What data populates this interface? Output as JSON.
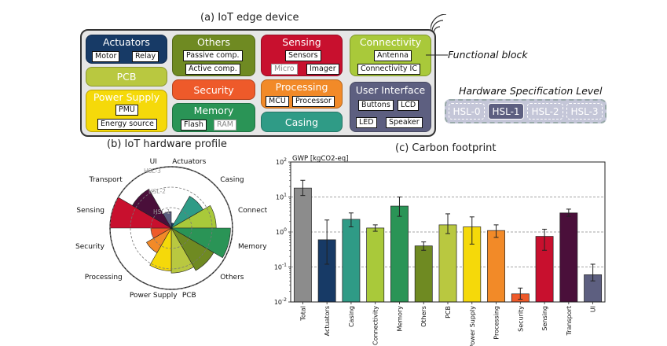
{
  "captions": {
    "a": "(a) IoT edge device",
    "b": "(b) IoT hardware profile",
    "c": "(c) Carbon footprint",
    "functional_block": "Functional block",
    "hsl_title": "Hardware Specification Level"
  },
  "blocks": {
    "actuators": {
      "title": "Actuators",
      "tags": [
        "Motor",
        "Relay"
      ],
      "color": "#173a66"
    },
    "others": {
      "title": "Others",
      "tags": [
        "Passive comp.",
        "Active comp."
      ],
      "color": "#6f8a22"
    },
    "sensing": {
      "title": "Sensing",
      "tags": [
        "Sensors",
        "Micro",
        "Imager"
      ],
      "color": "#c8102e"
    },
    "connectivity": {
      "title": "Connectivity",
      "tags": [
        "Antenna",
        "Connectivity IC"
      ],
      "color": "#a9c93a"
    },
    "pcb": {
      "title": "PCB",
      "color": "#b9c840"
    },
    "security": {
      "title": "Security",
      "color": "#ee5a2a"
    },
    "processing": {
      "title": "Processing",
      "tags": [
        "MCU",
        "Processor"
      ],
      "color": "#f28a28"
    },
    "power": {
      "title": "Power Supply",
      "tags": [
        "PMU",
        "Energy source"
      ],
      "color": "#f5d90a"
    },
    "memory": {
      "title": "Memory",
      "tags": [
        "Flash",
        "RAM"
      ],
      "color": "#2a9456"
    },
    "casing": {
      "title": "Casing",
      "color": "#2f9b86"
    },
    "ui": {
      "title": "User Interface",
      "tags": [
        "Buttons",
        "LCD",
        "LED",
        "Speaker"
      ],
      "color": "#5d5f80"
    }
  },
  "hsl_levels": [
    "HSL-0",
    "HSL-1",
    "HSL-2",
    "HSL-3"
  ],
  "hsl_active": "HSL-1",
  "radar": {
    "categories": [
      "Actuators",
      "Casing",
      "Connectivity",
      "Memory",
      "Others",
      "PCB",
      "Power Supply",
      "Processing",
      "Security",
      "Sensing",
      "Transport",
      "UI"
    ],
    "rings": [
      "HSL-1",
      "HSL-2",
      "HSL-3"
    ],
    "levels": [
      0.25,
      1.8,
      2.2,
      2.9,
      2.4,
      2.2,
      2.1,
      1.4,
      1.0,
      3.0,
      2.2,
      0.8
    ],
    "max_level": 3,
    "colors": [
      "#173a66",
      "#2f9b86",
      "#a9c93a",
      "#2a9456",
      "#6f8a22",
      "#b9c840",
      "#f5d90a",
      "#f28a28",
      "#ee5a2a",
      "#c8102e",
      "#4a0f3a",
      "#5d5f80"
    ]
  },
  "chart_data": {
    "type": "bar",
    "title": "(c) Carbon footprint",
    "ylabel": "GWP [kgCO2-eq]",
    "yscale": "log",
    "ylim": [
      0.01,
      100
    ],
    "yticks": [
      "10^-2",
      "10^-1",
      "10^0",
      "10^1",
      "10^2"
    ],
    "grid": "horizontal-dashed",
    "categories": [
      "Total",
      "Actuators",
      "Casing",
      "Connectivity",
      "Memory",
      "Others",
      "PCB",
      "Power Supply",
      "Processing",
      "Security",
      "Sensing",
      "Transport",
      "UI"
    ],
    "values": [
      18,
      0.6,
      2.3,
      1.3,
      5.5,
      0.4,
      1.6,
      1.4,
      1.1,
      0.017,
      0.75,
      3.5,
      0.06
    ],
    "err_low": [
      11,
      0.12,
      1.4,
      1.05,
      2.8,
      0.3,
      0.9,
      0.45,
      0.7,
      0.012,
      0.3,
      2.8,
      0.04
    ],
    "err_high": [
      30,
      2.2,
      3.5,
      1.6,
      10,
      0.52,
      3.3,
      2.7,
      1.6,
      0.025,
      1.2,
      4.5,
      0.12
    ],
    "colors": [
      "#8c8c8c",
      "#173a66",
      "#2f9b86",
      "#a9c93a",
      "#2a9456",
      "#6f8a22",
      "#b9c840",
      "#f5d90a",
      "#f28a28",
      "#ee5a2a",
      "#c8102e",
      "#4a0f3a",
      "#5d5f80"
    ]
  }
}
